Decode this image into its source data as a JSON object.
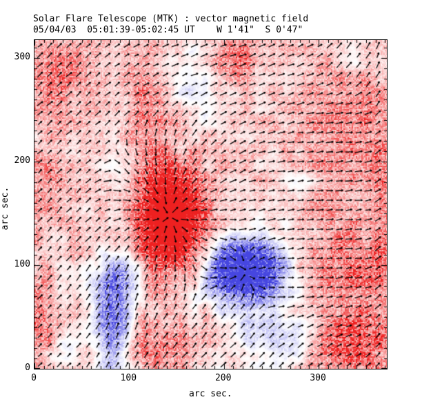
{
  "chart_data": {
    "type": "heatmap",
    "title": "Solar Flare Telescope (MTK) : vector magnetic field",
    "subtitle": "05/04/03  05:01:39-05:02:45 UT    W 1'41\"  S 0'47\"",
    "xlabel": "arc sec.",
    "ylabel": "arc sec.",
    "x_range": [
      0,
      372
    ],
    "y_range": [
      0,
      317
    ],
    "x_major_ticks": [
      0,
      100,
      200,
      300
    ],
    "y_major_ticks": [
      0,
      100,
      200,
      300
    ],
    "minor_tick_interval_arcsec": 10,
    "grid": false,
    "legend": false,
    "colors": {
      "positive_polarity": "#ee2020",
      "negative_polarity": "#4646e0",
      "vector": "#000000",
      "frame": "#000000",
      "background": "#ffffff"
    },
    "field_map": {
      "description": "longitudinal magnetic field, red=positive, blue=negative, speckled",
      "baseline": 0.24,
      "noise_amp_coarse": 0.2,
      "noise_amp_fine": 0.1,
      "blobs": [
        {
          "x": 143,
          "y": 147,
          "sx": 17,
          "sy": 24,
          "amp": 2.9
        },
        {
          "x": 141,
          "y": 138,
          "sx": 33,
          "sy": 42,
          "amp": 0.75
        },
        {
          "x": 223,
          "y": 95,
          "sx": 23,
          "sy": 17,
          "amp": -2.5
        },
        {
          "x": 221,
          "y": 92,
          "sx": 36,
          "sy": 27,
          "amp": -0.55
        },
        {
          "x": 83,
          "y": 42,
          "sx": 13,
          "sy": 38,
          "amp": -1.05
        },
        {
          "x": 92,
          "y": 88,
          "sx": 18,
          "sy": 22,
          "amp": -0.6
        },
        {
          "x": 252,
          "y": 28,
          "sx": 28,
          "sy": 20,
          "amp": -0.55
        },
        {
          "x": 30,
          "y": 12,
          "sx": 13,
          "sy": 10,
          "amp": -0.45
        },
        {
          "x": 165,
          "y": 276,
          "sx": 15,
          "sy": 26,
          "amp": -0.4
        },
        {
          "x": 280,
          "y": 182,
          "sx": 12,
          "sy": 12,
          "amp": -0.3
        },
        {
          "x": 338,
          "y": 300,
          "sx": 13,
          "sy": 14,
          "amp": -0.3
        },
        {
          "x": 93,
          "y": 176,
          "sx": 11,
          "sy": 16,
          "amp": -0.35
        },
        {
          "x": 10,
          "y": 218,
          "sx": 10,
          "sy": 14,
          "amp": -0.3
        },
        {
          "x": 30,
          "y": 289,
          "sx": 26,
          "sy": 24,
          "amp": 0.5
        },
        {
          "x": 121,
          "y": 250,
          "sx": 16,
          "sy": 36,
          "amp": 0.45
        },
        {
          "x": 327,
          "y": 230,
          "sx": 36,
          "sy": 58,
          "amp": 0.45
        },
        {
          "x": 208,
          "y": 299,
          "sx": 19,
          "sy": 17,
          "amp": 0.45
        },
        {
          "x": 15,
          "y": 192,
          "sx": 13,
          "sy": 32,
          "amp": 0.5
        },
        {
          "x": 6,
          "y": 40,
          "sx": 12,
          "sy": 45,
          "amp": 0.5
        },
        {
          "x": 339,
          "y": 25,
          "sx": 30,
          "sy": 24,
          "amp": 0.85
        },
        {
          "x": 132,
          "y": 20,
          "sx": 23,
          "sy": 18,
          "amp": 0.5
        },
        {
          "x": 328,
          "y": 98,
          "sx": 30,
          "sy": 26,
          "amp": 0.5
        },
        {
          "x": 367,
          "y": 160,
          "sx": 10,
          "sy": 60,
          "amp": 0.35
        }
      ]
    },
    "vector_field": {
      "description": "transverse field direction ticks on regular grid",
      "grid_spacing_px": 14,
      "seed": 7,
      "default_angle_deg": 40,
      "default_weight": 0.35,
      "regions": [
        {
          "type": "radial",
          "x": 143,
          "y": 147,
          "sx": 42,
          "sy": 48,
          "weight": 2.6
        },
        {
          "type": "radial",
          "x": 223,
          "y": 95,
          "sx": 30,
          "sy": 24,
          "weight": 1.6
        },
        {
          "type": "fixed",
          "angle_deg": 2,
          "x": 300,
          "y": 130,
          "sx": 55,
          "sy": 55,
          "weight": 1.5
        },
        {
          "type": "fixed",
          "angle_deg": 0,
          "x": 320,
          "y": 200,
          "sx": 45,
          "sy": 40,
          "weight": 1.1
        },
        {
          "type": "fixed",
          "angle_deg": 78,
          "x": 95,
          "y": 70,
          "sx": 26,
          "sy": 48,
          "weight": 1.2
        },
        {
          "type": "fixed",
          "angle_deg": 50,
          "x": 195,
          "y": 28,
          "sx": 45,
          "sy": 26,
          "weight": 1.4
        },
        {
          "type": "fixed",
          "angle_deg": 12,
          "x": 210,
          "y": 290,
          "sx": 70,
          "sy": 35,
          "weight": 0.8
        },
        {
          "type": "fixed",
          "angle_deg": 45,
          "x": 35,
          "y": 285,
          "sx": 35,
          "sy": 35,
          "weight": 0.9
        },
        {
          "type": "fixed",
          "angle_deg": 88,
          "x": 366,
          "y": 170,
          "sx": 10,
          "sy": 80,
          "weight": 1.0
        },
        {
          "type": "fixed",
          "angle_deg": 70,
          "x": 345,
          "y": 300,
          "sx": 25,
          "sy": 22,
          "weight": 0.7
        },
        {
          "type": "fixed",
          "angle_deg": 55,
          "x": 45,
          "y": 120,
          "sx": 30,
          "sy": 50,
          "weight": 0.8
        }
      ]
    }
  }
}
